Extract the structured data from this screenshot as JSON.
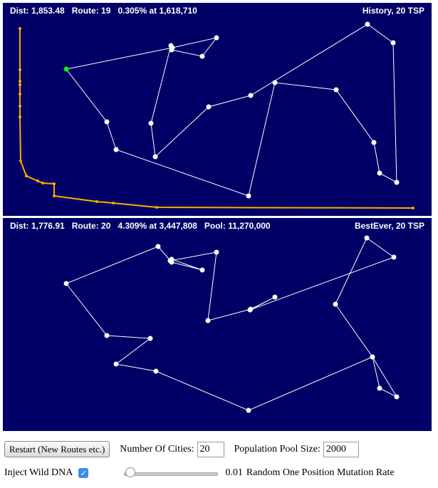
{
  "history_panel": {
    "dist_label": "Dist: 1,853.48",
    "route_label": "Route: 19",
    "progress_label": "0.305% at 1,618,710",
    "title": "History, 20 TSP"
  },
  "best_panel": {
    "dist_label": "Dist: 1,776.91",
    "route_label": "Route: 20",
    "progress_label": "4.309% at 3,447,808",
    "pool_label": "Pool: 11,270,000",
    "title": "BestEver, 20 TSP"
  },
  "controls": {
    "restart_label": "Restart (New Routes etc.)",
    "cities_label": "Number Of Cities:",
    "cities_value": "20",
    "pool_label": "Population Pool Size:",
    "pool_value": "2000",
    "inject_label": "Inject Wild DNA",
    "inject_checked": true,
    "mutation_value_text": "0.01",
    "mutation_label": "Random One Position Mutation Rate",
    "mutation_rate": 0.01
  },
  "colors": {
    "panel_bg": "#000066",
    "route_line": "#ffffff",
    "city": "#ffffff",
    "start_city": "#00ff00",
    "history_line": "#ffaa00"
  }
}
